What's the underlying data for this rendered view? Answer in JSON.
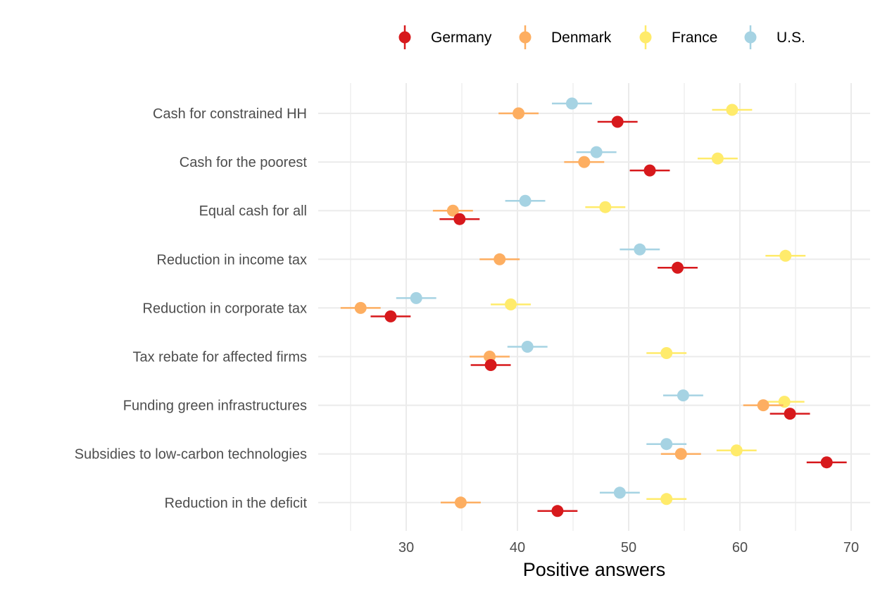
{
  "chart_data": {
    "type": "scatter",
    "variant": "dot-plot with horizontal error bars",
    "title": "",
    "xlabel": "Positive answers",
    "ylabel": "",
    "xlim": [
      22,
      71.5
    ],
    "x_ticks": [
      30,
      40,
      50,
      60,
      70
    ],
    "grid": true,
    "legend_position": "top",
    "categories": [
      "Cash for constrained HH",
      "Cash for the poorest",
      "Equal cash for all",
      "Reduction in income tax",
      "Reduction in corporate tax",
      "Tax rebate for affected firms",
      "Funding green infrastructures",
      "Subsidies to low-carbon technologies",
      "Reduction in the deficit"
    ],
    "series": [
      {
        "name": "Germany",
        "color": "#d7191c",
        "values": [
          49.0,
          51.9,
          34.8,
          54.4,
          28.6,
          37.6,
          64.5,
          67.8,
          43.6
        ],
        "error": [
          1.8,
          1.8,
          1.8,
          1.8,
          1.8,
          1.8,
          1.8,
          1.8,
          1.8
        ]
      },
      {
        "name": "Denmark",
        "color": "#fdae61",
        "values": [
          40.1,
          46.0,
          34.2,
          38.4,
          25.9,
          37.5,
          62.1,
          54.7,
          34.9
        ],
        "error": [
          1.8,
          1.8,
          1.8,
          1.8,
          1.8,
          1.8,
          1.8,
          1.8,
          1.8
        ]
      },
      {
        "name": "France",
        "color": "#ffeb6b",
        "values": [
          59.3,
          58.0,
          47.9,
          64.1,
          39.4,
          53.4,
          64.0,
          59.7,
          53.4
        ],
        "error": [
          1.8,
          1.8,
          1.8,
          1.8,
          1.8,
          1.8,
          1.8,
          1.8,
          1.8
        ]
      },
      {
        "name": "U.S.",
        "color": "#a6d3e3",
        "values": [
          44.9,
          47.1,
          40.7,
          51.0,
          30.9,
          40.9,
          54.9,
          53.4,
          49.2
        ],
        "error": [
          1.8,
          1.8,
          1.8,
          1.8,
          1.8,
          1.8,
          1.8,
          1.8,
          1.8
        ]
      }
    ]
  }
}
